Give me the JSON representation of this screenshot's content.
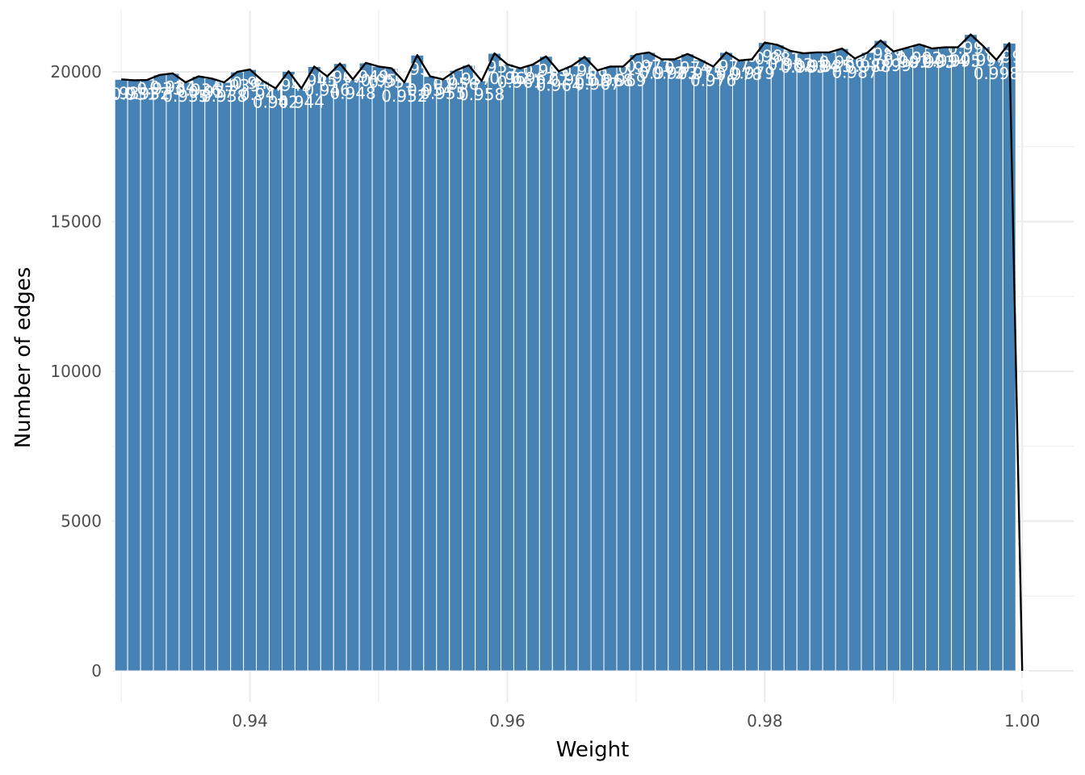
{
  "chart_data": {
    "type": "bar",
    "xlabel": "Weight",
    "ylabel": "Number of edges",
    "xlim": [
      0.9293,
      1.004
    ],
    "ylim": [
      -1050,
      22050
    ],
    "x_ticks": [
      0.94,
      0.96,
      0.98,
      1.0
    ],
    "x_tick_labels": [
      "0.94",
      "0.96",
      "0.98",
      "1.00"
    ],
    "y_ticks": [
      0,
      5000,
      10000,
      15000,
      20000
    ],
    "y_tick_labels": [
      "0",
      "5000",
      "10000",
      "15000",
      "20000"
    ],
    "grid": true,
    "bin_start": 0.9295,
    "bin_width": 0.001,
    "bar_color": "#4682B4",
    "line_color": "#000000",
    "label_color": "#ffffff",
    "x": [
      0.93,
      0.931,
      0.932,
      0.933,
      0.934,
      0.935,
      0.936,
      0.937,
      0.938,
      0.939,
      0.94,
      0.941,
      0.942,
      0.943,
      0.944,
      0.945,
      0.946,
      0.947,
      0.948,
      0.949,
      0.95,
      0.951,
      0.952,
      0.953,
      0.954,
      0.955,
      0.956,
      0.957,
      0.958,
      0.959,
      0.96,
      0.961,
      0.962,
      0.963,
      0.964,
      0.965,
      0.966,
      0.967,
      0.968,
      0.969,
      0.97,
      0.971,
      0.972,
      0.973,
      0.974,
      0.975,
      0.976,
      0.977,
      0.978,
      0.979,
      0.98,
      0.981,
      0.982,
      0.983,
      0.984,
      0.985,
      0.986,
      0.987,
      0.988,
      0.989,
      0.99,
      0.991,
      0.992,
      0.993,
      0.994,
      0.995,
      0.996,
      0.997,
      0.998,
      0.999,
      1.0
    ],
    "values": [
      19750,
      19720,
      19730,
      19900,
      19950,
      19650,
      19850,
      19780,
      19650,
      20000,
      20080,
      19700,
      19450,
      20020,
      19450,
      20180,
      19850,
      20280,
      19750,
      20300,
      20180,
      20120,
      19650,
      20560,
      19850,
      19750,
      20050,
      20220,
      19700,
      20620,
      20250,
      20120,
      20250,
      20520,
      20020,
      20200,
      20500,
      20050,
      20180,
      20180,
      20580,
      20650,
      20420,
      20420,
      20600,
      20400,
      20180,
      20650,
      20380,
      20420,
      20980,
      20900,
      20700,
      20620,
      20650,
      20650,
      20780,
      20450,
      20650,
      21050,
      20680,
      20800,
      20920,
      20780,
      20820,
      20820,
      21250,
      20850,
      20400,
      20960,
      0
    ],
    "labels": [
      "0.93",
      "0.931",
      "0.932",
      "0.933",
      "0.934",
      "0.935",
      "0.936",
      "0.937",
      "0.938",
      "0.939",
      "0.94",
      "0.941",
      "0.942",
      "0.943",
      "0.944",
      "0.945",
      "0.946",
      "0.947",
      "0.948",
      "0.949",
      "0.95",
      "0.951",
      "0.952",
      "0.953",
      "0.954",
      "0.955",
      "0.956",
      "0.957",
      "0.958",
      "0.959",
      "0.96",
      "0.961",
      "0.962",
      "0.963",
      "0.964",
      "0.965",
      "0.966",
      "0.967",
      "0.968",
      "0.969",
      "0.97",
      "0.971",
      "0.972",
      "0.973",
      "0.974",
      "0.975",
      "0.976",
      "0.977",
      "0.978",
      "0.979",
      "0.98",
      "0.981",
      "0.982",
      "0.983",
      "0.984",
      "0.985",
      "0.986",
      "0.987",
      "0.988",
      "0.989",
      "0.99",
      "0.991",
      "0.992",
      "0.993",
      "0.994",
      "0.995",
      "0.996",
      "0.997",
      "0.998",
      "0.999",
      "1"
    ]
  }
}
